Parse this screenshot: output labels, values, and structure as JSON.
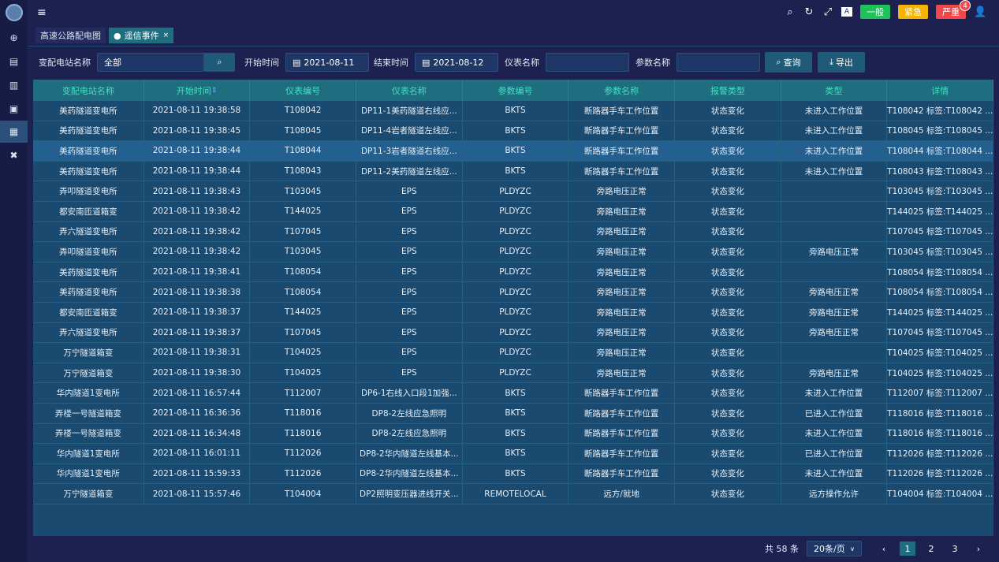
{
  "sidebar": {
    "items": [
      "globe-icon",
      "chart-icon",
      "bar-chart-icon",
      "monitor-icon",
      "document-icon",
      "tools-icon"
    ],
    "active": 4
  },
  "topbar": {
    "levels": [
      {
        "label": "一般",
        "color": "#1fc25a"
      },
      {
        "label": "紧急",
        "color": "#f5b400"
      },
      {
        "label": "严重",
        "color": "#f04848",
        "badge": "4"
      }
    ]
  },
  "tabs": [
    {
      "label": "高速公路配电图"
    },
    {
      "label": "遥信事件",
      "active": true,
      "close": "×"
    }
  ],
  "filters": {
    "station_label": "变配电站名称",
    "station_value": "全部",
    "start_label": "开始时间",
    "start_value": "2021-08-11",
    "end_label": "结束时间",
    "end_value": "2021-08-12",
    "meter_label": "仪表名称",
    "meter_value": "",
    "param_label": "参数名称",
    "param_value": "",
    "query": "查询",
    "export": "导出"
  },
  "table": {
    "columns": [
      "变配电站名称",
      "开始时间",
      "仪表编号",
      "仪表名称",
      "参数编号",
      "参数名称",
      "报警类型",
      "类型",
      "详情"
    ],
    "sort_column": "开始时间",
    "rows": [
      [
        "美药隧道变电所",
        "2021-08-11 19:38:58",
        "T108042",
        "DP11-1美药隧道右线应...",
        "BKTS",
        "断路器手车工作位置",
        "状态变化",
        "未进入工作位置",
        "T108042 标签:T108042 ..."
      ],
      [
        "美药隧道变电所",
        "2021-08-11 19:38:45",
        "T108045",
        "DP11-4岩者隧道左线应...",
        "BKTS",
        "断路器手车工作位置",
        "状态变化",
        "未进入工作位置",
        "T108045 标签:T108045 ..."
      ],
      [
        "美药隧道变电所",
        "2021-08-11 19:38:44",
        "T108044",
        "DP11-3岩者隧道右线应...",
        "BKTS",
        "断路器手车工作位置",
        "状态变化",
        "未进入工作位置",
        "T108044 标签:T108044 ..."
      ],
      [
        "美药隧道变电所",
        "2021-08-11 19:38:44",
        "T108043",
        "DP11-2美药隧道左线应...",
        "BKTS",
        "断路器手车工作位置",
        "状态变化",
        "未进入工作位置",
        "T108043 标签:T108043 ..."
      ],
      [
        "弄叩隧道变电所",
        "2021-08-11 19:38:43",
        "T103045",
        "EPS",
        "PLDYZC",
        "旁路电压正常",
        "状态变化",
        "",
        "T103045 标签:T103045 ..."
      ],
      [
        "都安南匝道箱变",
        "2021-08-11 19:38:42",
        "T144025",
        "EPS",
        "PLDYZC",
        "旁路电压正常",
        "状态变化",
        "",
        "T144025 标签:T144025 ..."
      ],
      [
        "弄六隧道变电所",
        "2021-08-11 19:38:42",
        "T107045",
        "EPS",
        "PLDYZC",
        "旁路电压正常",
        "状态变化",
        "",
        "T107045 标签:T107045 ..."
      ],
      [
        "弄叩隧道变电所",
        "2021-08-11 19:38:42",
        "T103045",
        "EPS",
        "PLDYZC",
        "旁路电压正常",
        "状态变化",
        "旁路电压正常",
        "T103045 标签:T103045 ..."
      ],
      [
        "美药隧道变电所",
        "2021-08-11 19:38:41",
        "T108054",
        "EPS",
        "PLDYZC",
        "旁路电压正常",
        "状态变化",
        "",
        "T108054 标签:T108054 ..."
      ],
      [
        "美药隧道变电所",
        "2021-08-11 19:38:38",
        "T108054",
        "EPS",
        "PLDYZC",
        "旁路电压正常",
        "状态变化",
        "旁路电压正常",
        "T108054 标签:T108054 ..."
      ],
      [
        "都安南匝道箱变",
        "2021-08-11 19:38:37",
        "T144025",
        "EPS",
        "PLDYZC",
        "旁路电压正常",
        "状态变化",
        "旁路电压正常",
        "T144025 标签:T144025 ..."
      ],
      [
        "弄六隧道变电所",
        "2021-08-11 19:38:37",
        "T107045",
        "EPS",
        "PLDYZC",
        "旁路电压正常",
        "状态变化",
        "旁路电压正常",
        "T107045 标签:T107045 ..."
      ],
      [
        "万宁隧道箱变",
        "2021-08-11 19:38:31",
        "T104025",
        "EPS",
        "PLDYZC",
        "旁路电压正常",
        "状态变化",
        "",
        "T104025 标签:T104025 ..."
      ],
      [
        "万宁隧道箱变",
        "2021-08-11 19:38:30",
        "T104025",
        "EPS",
        "PLDYZC",
        "旁路电压正常",
        "状态变化",
        "旁路电压正常",
        "T104025 标签:T104025 ..."
      ],
      [
        "华内隧道1变电所",
        "2021-08-11 16:57:44",
        "T112007",
        "DP6-1右线入口段1加强...",
        "BKTS",
        "断路器手车工作位置",
        "状态变化",
        "未进入工作位置",
        "T112007 标签:T112007 ..."
      ],
      [
        "弄楼一号隧道箱变",
        "2021-08-11 16:36:36",
        "T118016",
        "DP8-2左线应急照明",
        "BKTS",
        "断路器手车工作位置",
        "状态变化",
        "已进入工作位置",
        "T118016 标签:T118016 ..."
      ],
      [
        "弄楼一号隧道箱变",
        "2021-08-11 16:34:48",
        "T118016",
        "DP8-2左线应急照明",
        "BKTS",
        "断路器手车工作位置",
        "状态变化",
        "未进入工作位置",
        "T118016 标签:T118016 ..."
      ],
      [
        "华内隧道1变电所",
        "2021-08-11 16:01:11",
        "T112026",
        "DP8-2华内隧道左线基本...",
        "BKTS",
        "断路器手车工作位置",
        "状态变化",
        "已进入工作位置",
        "T112026 标签:T112026 ..."
      ],
      [
        "华内隧道1变电所",
        "2021-08-11 15:59:33",
        "T112026",
        "DP8-2华内隧道左线基本...",
        "BKTS",
        "断路器手车工作位置",
        "状态变化",
        "未进入工作位置",
        "T112026 标签:T112026 ..."
      ],
      [
        "万宁隧道箱变",
        "2021-08-11 15:57:46",
        "T104004",
        "DP2照明变压器进线开关...",
        "REMOTELOCAL",
        "远方/就地",
        "状态变化",
        "远方操作允许",
        "T104004 标签:T104004 ..."
      ]
    ],
    "highlighted_row": 2
  },
  "pagination": {
    "total": "共 58 条",
    "page_size": "20条/页",
    "pages": [
      "1",
      "2",
      "3"
    ],
    "current": "1",
    "prev": "‹",
    "next": "›"
  }
}
